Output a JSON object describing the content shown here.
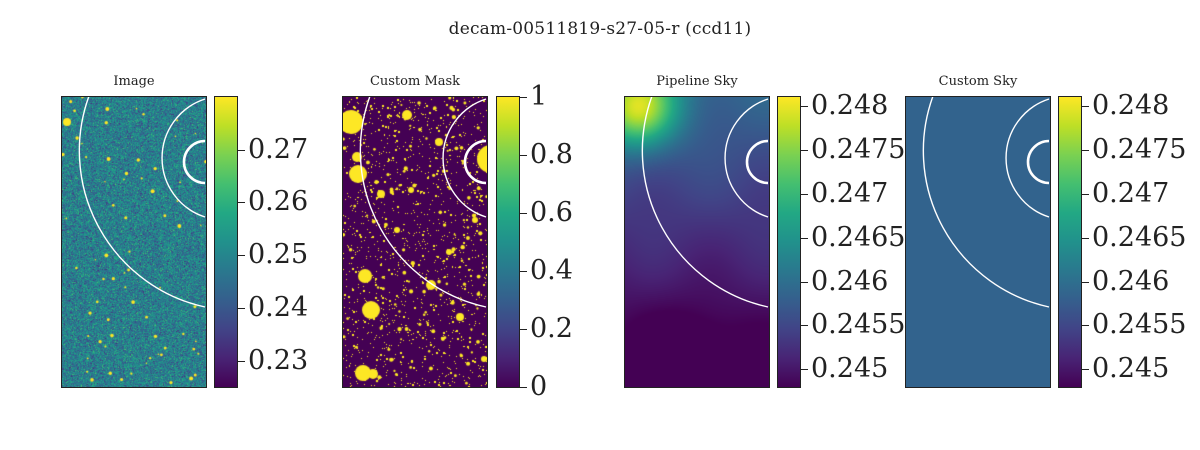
{
  "figure": {
    "suptitle": "decam-00511819-s27-05-r (ccd11)"
  },
  "colors": {
    "colormap": "viridis",
    "ring": "#ffffff",
    "frame": "#222222"
  },
  "chart_data": [
    {
      "type": "heatmap",
      "title": "Image",
      "colorbar": {
        "min": 0.225,
        "max": 0.28,
        "ticks": [
          0.23,
          0.24,
          0.25,
          0.26,
          0.27
        ],
        "tick_labels": [
          "0.23",
          "0.24",
          "0.25",
          "0.26",
          "0.27"
        ]
      },
      "pattern": "noise"
    },
    {
      "type": "heatmap",
      "title": "Custom Mask",
      "colorbar": {
        "min": 0,
        "max": 1,
        "ticks": [
          0,
          0.2,
          0.4,
          0.6,
          0.8,
          1
        ],
        "tick_labels": [
          "0",
          "0.2",
          "0.4",
          "0.6",
          "0.8",
          "1"
        ]
      },
      "pattern": "mask"
    },
    {
      "type": "heatmap",
      "title": "Pipeline Sky",
      "colorbar": {
        "min": 0.2448,
        "max": 0.2481,
        "ticks": [
          0.245,
          0.2455,
          0.246,
          0.2465,
          0.247,
          0.2475,
          0.248
        ],
        "tick_labels": [
          "0.245",
          "0.2455",
          "0.246",
          "0.2465",
          "0.247",
          "0.2475",
          "0.248"
        ]
      },
      "pattern": "smooth"
    },
    {
      "type": "heatmap",
      "title": "Custom Sky",
      "colorbar": {
        "min": 0.2448,
        "max": 0.2481,
        "ticks": [
          0.245,
          0.2455,
          0.246,
          0.2465,
          0.247,
          0.2475,
          0.248
        ],
        "tick_labels": [
          "0.245",
          "0.2455",
          "0.246",
          "0.2465",
          "0.247",
          "0.2475",
          "0.248"
        ]
      },
      "pattern": "flat"
    }
  ]
}
